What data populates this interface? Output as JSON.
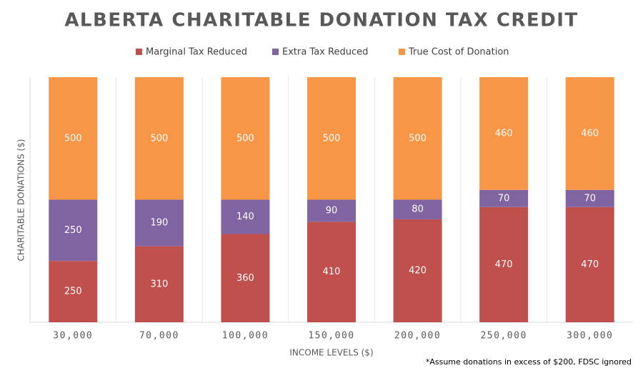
{
  "chart_data": {
    "type": "stacked-bar",
    "title": "ALBERTA CHARITABLE DONATION TAX CREDIT",
    "x_label": "INCOME LEVELS ($)",
    "y_label": "CHARITABLE DONATIONS ($)",
    "footnote": "*Assume donations in excess of $200, FDSC ignored",
    "categories": [
      "30,000",
      "70,000",
      "100,000",
      "150,000",
      "200,000",
      "250,000",
      "300,000"
    ],
    "series": [
      {
        "name": "Marginal Tax Reduced",
        "color": "#c0504d",
        "values": [
          250,
          310,
          360,
          410,
          420,
          470,
          470
        ]
      },
      {
        "name": "Extra Tax Reduced",
        "color": "#8064a2",
        "values": [
          250,
          190,
          140,
          90,
          80,
          70,
          70
        ]
      },
      {
        "name": "True Cost of Donation",
        "color": "#f79646",
        "values": [
          500,
          500,
          500,
          500,
          500,
          460,
          460
        ]
      }
    ],
    "ylim": [
      0,
      1000
    ],
    "legend": "top"
  }
}
